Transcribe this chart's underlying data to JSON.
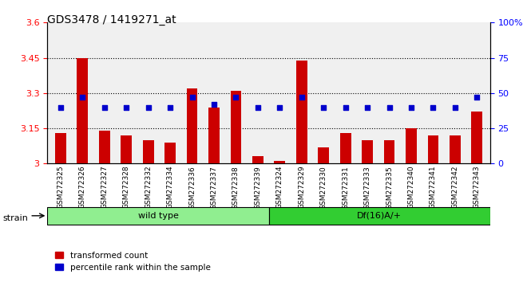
{
  "title": "GDS3478 / 1419271_at",
  "samples": [
    "GSM272325",
    "GSM272326",
    "GSM272327",
    "GSM272328",
    "GSM272332",
    "GSM272334",
    "GSM272336",
    "GSM272337",
    "GSM272338",
    "GSM272339",
    "GSM272324",
    "GSM272329",
    "GSM272330",
    "GSM272331",
    "GSM272333",
    "GSM272335",
    "GSM272340",
    "GSM272341",
    "GSM272342",
    "GSM272343"
  ],
  "bar_values": [
    3.13,
    3.45,
    3.14,
    3.12,
    3.1,
    3.09,
    3.32,
    3.24,
    3.31,
    3.03,
    3.01,
    3.44,
    3.07,
    3.13,
    3.1,
    3.1,
    3.15,
    3.12,
    3.12,
    3.22
  ],
  "dot_values": [
    40,
    47,
    40,
    40,
    40,
    40,
    47,
    42,
    47,
    40,
    40,
    47,
    40,
    40,
    40,
    40,
    40,
    40,
    40,
    47
  ],
  "bar_color": "#cc0000",
  "dot_color": "#0000cc",
  "ylim_left": [
    3.0,
    3.6
  ],
  "ylim_right": [
    0,
    100
  ],
  "yticks_left": [
    3.0,
    3.15,
    3.3,
    3.45,
    3.6
  ],
  "yticks_right": [
    0,
    25,
    50,
    75,
    100
  ],
  "ytick_labels_left": [
    "3",
    "3.15",
    "3.3",
    "3.45",
    "3.6"
  ],
  "ytick_labels_right": [
    "0",
    "25",
    "50",
    "75",
    "100%"
  ],
  "hlines": [
    3.15,
    3.3,
    3.45
  ],
  "wild_type_count": 10,
  "df_count": 10,
  "wild_type_label": "wild type",
  "df_label": "Df(16)A/+",
  "strain_label": "strain",
  "legend_bar": "transformed count",
  "legend_dot": "percentile rank within the sample",
  "plot_bg": "#e8e8e8",
  "wt_bg": "#90ee90",
  "df_bg": "#32cd32",
  "strain_bar_bg": "#c8c8c8"
}
